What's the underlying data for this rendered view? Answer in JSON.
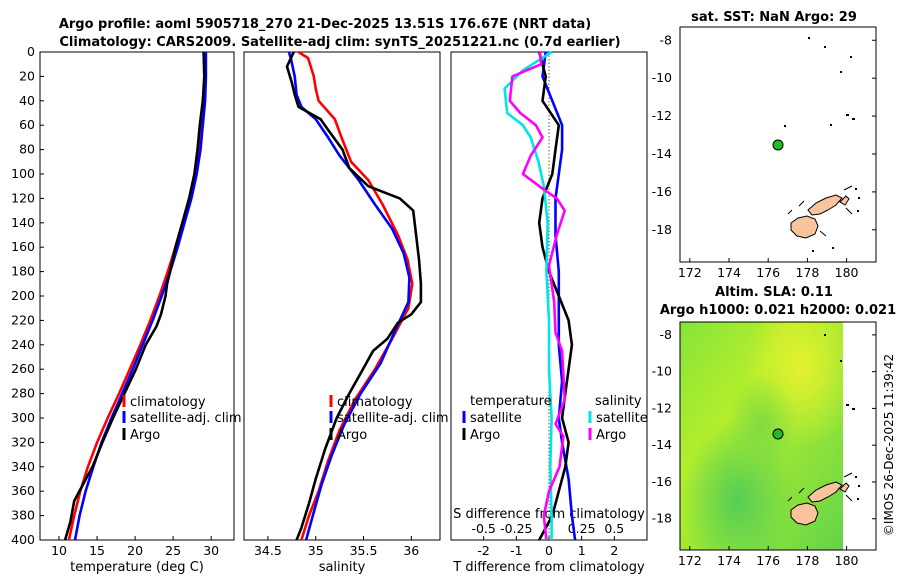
{
  "header": {
    "title_line1": "Argo profile: aoml 5905718_270 21-Dec-2025 13.51S 176.67E (NRT data)",
    "title_line2": "Climatology: CARS2009. Satellite-adj clim: synTS_20251221.nc (0.7d earlier)"
  },
  "watermark": "©IMOS 26-Dec-2025 11:39:42",
  "colors": {
    "climatology": "#ff0000",
    "satellite": "#0000ff",
    "argo": "#000000",
    "salinity_diff_argo": "#ff00ff",
    "salinity_diff_satellite": "#00e5e5",
    "land": "#f7c49d",
    "float_marker": "#22bb22"
  },
  "chart_data": [
    {
      "id": "temperature",
      "type": "line",
      "xlabel": "temperature (deg C)",
      "ylabel": "",
      "xlim": [
        7.5,
        33
      ],
      "ylim": [
        400,
        0
      ],
      "xticks": [
        "10",
        "15",
        "20",
        "25",
        "30"
      ],
      "yticks": [
        "0",
        "20",
        "40",
        "60",
        "80",
        "100",
        "120",
        "140",
        "160",
        "180",
        "200",
        "220",
        "240",
        "260",
        "280",
        "300",
        "320",
        "340",
        "360",
        "380",
        "400"
      ],
      "legend_location": "right",
      "legend": [
        "climatology",
        "satellite-adj. clim",
        "Argo"
      ],
      "series": [
        {
          "name": "climatology",
          "color": "#ff0000",
          "points": [
            [
              29.2,
              0
            ],
            [
              29.2,
              20
            ],
            [
              29.1,
              40
            ],
            [
              28.8,
              60
            ],
            [
              28.5,
              80
            ],
            [
              28.0,
              100
            ],
            [
              27.2,
              120
            ],
            [
              26.3,
              140
            ],
            [
              25.3,
              160
            ],
            [
              24.3,
              180
            ],
            [
              23.2,
              200
            ],
            [
              22.0,
              220
            ],
            [
              20.7,
              240
            ],
            [
              19.3,
              260
            ],
            [
              17.9,
              280
            ],
            [
              16.4,
              300
            ],
            [
              15.0,
              320
            ],
            [
              13.8,
              340
            ],
            [
              12.8,
              360
            ],
            [
              12.0,
              380
            ],
            [
              11.3,
              400
            ]
          ]
        },
        {
          "name": "satellite-adj. clim",
          "color": "#0000ff",
          "points": [
            [
              29.3,
              0
            ],
            [
              29.3,
              20
            ],
            [
              29.2,
              40
            ],
            [
              28.9,
              60
            ],
            [
              28.6,
              80
            ],
            [
              28.1,
              100
            ],
            [
              27.4,
              120
            ],
            [
              26.5,
              140
            ],
            [
              25.6,
              160
            ],
            [
              24.6,
              180
            ],
            [
              23.5,
              200
            ],
            [
              22.3,
              220
            ],
            [
              21.0,
              240
            ],
            [
              19.7,
              260
            ],
            [
              18.3,
              280
            ],
            [
              16.9,
              300
            ],
            [
              15.6,
              320
            ],
            [
              14.5,
              340
            ],
            [
              13.5,
              360
            ],
            [
              12.7,
              380
            ],
            [
              12.1,
              400
            ]
          ]
        },
        {
          "name": "Argo",
          "color": "#000000",
          "points": [
            [
              29.0,
              0
            ],
            [
              29.1,
              20
            ],
            [
              28.9,
              40
            ],
            [
              28.5,
              60
            ],
            [
              28.2,
              80
            ],
            [
              27.8,
              100
            ],
            [
              27.1,
              120
            ],
            [
              26.2,
              140
            ],
            [
              25.3,
              160
            ],
            [
              24.6,
              180
            ],
            [
              24.2,
              190
            ],
            [
              24.0,
              200
            ],
            [
              23.4,
              215
            ],
            [
              22.8,
              225
            ],
            [
              21.4,
              240
            ],
            [
              20.1,
              260
            ],
            [
              18.6,
              280
            ],
            [
              17.1,
              300
            ],
            [
              15.7,
              320
            ],
            [
              14.4,
              340
            ],
            [
              13.1,
              355
            ],
            [
              12.0,
              368
            ],
            [
              11.5,
              385
            ],
            [
              10.8,
              400
            ]
          ]
        }
      ]
    },
    {
      "id": "salinity",
      "type": "line",
      "xlabel": "salinity",
      "ylabel": "",
      "xlim": [
        34.25,
        36.3
      ],
      "ylim": [
        400,
        0
      ],
      "xticks": [
        "34.5",
        "35",
        "35.5",
        "36"
      ],
      "legend_location": "right",
      "legend": [
        "climatology",
        "satellite-adj. clim",
        "Argo"
      ],
      "series": [
        {
          "name": "climatology",
          "color": "#ff0000",
          "points": [
            [
              34.82,
              0
            ],
            [
              34.92,
              5
            ],
            [
              34.98,
              20
            ],
            [
              35.0,
              30
            ],
            [
              35.03,
              40
            ],
            [
              35.2,
              55
            ],
            [
              35.27,
              70
            ],
            [
              35.37,
              90
            ],
            [
              35.55,
              105
            ],
            [
              35.7,
              125
            ],
            [
              35.86,
              150
            ],
            [
              35.96,
              170
            ],
            [
              36.01,
              190
            ],
            [
              35.97,
              210
            ],
            [
              35.8,
              235
            ],
            [
              35.62,
              260
            ],
            [
              35.41,
              285
            ],
            [
              35.25,
              310
            ],
            [
              35.13,
              335
            ],
            [
              35.03,
              360
            ],
            [
              34.93,
              380
            ],
            [
              34.85,
              400
            ]
          ]
        },
        {
          "name": "satellite-adj. clim",
          "color": "#0000ff",
          "points": [
            [
              34.72,
              0
            ],
            [
              34.74,
              5
            ],
            [
              34.78,
              20
            ],
            [
              34.8,
              35
            ],
            [
              34.85,
              45
            ],
            [
              35.0,
              55
            ],
            [
              35.13,
              70
            ],
            [
              35.25,
              85
            ],
            [
              35.45,
              105
            ],
            [
              35.62,
              125
            ],
            [
              35.8,
              145
            ],
            [
              35.92,
              165
            ],
            [
              35.98,
              185
            ],
            [
              35.97,
              205
            ],
            [
              35.85,
              225
            ],
            [
              35.68,
              255
            ],
            [
              35.47,
              280
            ],
            [
              35.3,
              305
            ],
            [
              35.17,
              330
            ],
            [
              35.06,
              355
            ],
            [
              34.97,
              380
            ],
            [
              34.9,
              400
            ]
          ]
        },
        {
          "name": "Argo",
          "color": "#000000",
          "points": [
            [
              34.77,
              0
            ],
            [
              34.7,
              12
            ],
            [
              34.75,
              25
            ],
            [
              34.78,
              35
            ],
            [
              34.82,
              45
            ],
            [
              35.05,
              55
            ],
            [
              35.14,
              65
            ],
            [
              35.28,
              80
            ],
            [
              35.35,
              95
            ],
            [
              35.55,
              110
            ],
            [
              35.88,
              120
            ],
            [
              36.02,
              130
            ],
            [
              36.05,
              150
            ],
            [
              36.08,
              170
            ],
            [
              36.1,
              190
            ],
            [
              36.1,
              205
            ],
            [
              36.0,
              215
            ],
            [
              35.86,
              222
            ],
            [
              35.75,
              235
            ],
            [
              35.6,
              245
            ],
            [
              35.48,
              262
            ],
            [
              35.35,
              280
            ],
            [
              35.22,
              300
            ],
            [
              35.1,
              325
            ],
            [
              35.0,
              350
            ],
            [
              34.93,
              370
            ],
            [
              34.85,
              390
            ],
            [
              34.8,
              400
            ]
          ]
        }
      ]
    },
    {
      "id": "difference",
      "type": "line",
      "xlabel": "T difference from climatology",
      "secondary_xlabel": "S difference from climatology",
      "xlim": [
        -3.0,
        3.0
      ],
      "ylim": [
        400,
        0
      ],
      "xticks": [
        "-2",
        "-1",
        "0",
        "1",
        "2"
      ],
      "secondary_xlim": [
        -0.75,
        0.75
      ],
      "secondary_xticks": [
        "-0.5",
        "-0.25",
        "0",
        "0.25",
        "0.5"
      ],
      "legend_location": "right",
      "legend_temperature_title": "temperature",
      "legend_salinity_title": "salinity",
      "legend_temperature": [
        "satellite",
        "Argo"
      ],
      "legend_salinity": [
        "satellite",
        "Argo"
      ],
      "series": [
        {
          "name": "temperature satellite",
          "color": "#0000ff",
          "axis": "T",
          "points": [
            [
              -0.1,
              0
            ],
            [
              -0.2,
              20
            ],
            [
              0.1,
              40
            ],
            [
              0.4,
              60
            ],
            [
              0.4,
              80
            ],
            [
              0.3,
              100
            ],
            [
              0.2,
              120
            ],
            [
              0.2,
              150
            ],
            [
              0.3,
              180
            ],
            [
              0.3,
              210
            ],
            [
              0.3,
              240
            ],
            [
              0.4,
              270
            ],
            [
              0.3,
              300
            ],
            [
              0.4,
              320
            ],
            [
              0.6,
              350
            ],
            [
              0.7,
              380
            ],
            [
              0.8,
              400
            ]
          ]
        },
        {
          "name": "temperature Argo",
          "color": "#000000",
          "axis": "T",
          "points": [
            [
              -0.3,
              0
            ],
            [
              -0.1,
              20
            ],
            [
              -0.2,
              40
            ],
            [
              0.3,
              60
            ],
            [
              0.2,
              80
            ],
            [
              0.1,
              100
            ],
            [
              -0.2,
              120
            ],
            [
              -0.3,
              140
            ],
            [
              -0.2,
              160
            ],
            [
              0.0,
              180
            ],
            [
              0.3,
              200
            ],
            [
              0.6,
              220
            ],
            [
              0.7,
              240
            ],
            [
              0.6,
              260
            ],
            [
              0.5,
              280
            ],
            [
              0.4,
              300
            ],
            [
              0.6,
              320
            ],
            [
              0.5,
              340
            ],
            [
              0.3,
              360
            ],
            [
              0.1,
              380
            ],
            [
              -0.3,
              400
            ]
          ]
        },
        {
          "name": "salinity satellite",
          "color": "#00e5e5",
          "axis": "S",
          "points": [
            [
              0.02,
              0
            ],
            [
              -0.2,
              15
            ],
            [
              -0.34,
              30
            ],
            [
              -0.32,
              50
            ],
            [
              -0.2,
              60
            ],
            [
              -0.14,
              70
            ],
            [
              -0.08,
              90
            ],
            [
              -0.04,
              110
            ],
            [
              -0.01,
              140
            ],
            [
              -0.02,
              180
            ],
            [
              0.0,
              220
            ],
            [
              0.0,
              260
            ],
            [
              0.02,
              300
            ],
            [
              0.01,
              340
            ],
            [
              0.02,
              380
            ],
            [
              0.02,
              400
            ]
          ]
        },
        {
          "name": "salinity Argo",
          "color": "#ff00ff",
          "axis": "S",
          "points": [
            [
              -0.07,
              0
            ],
            [
              -0.06,
              10
            ],
            [
              -0.28,
              20
            ],
            [
              -0.3,
              40
            ],
            [
              -0.22,
              50
            ],
            [
              -0.1,
              60
            ],
            [
              -0.05,
              70
            ],
            [
              -0.14,
              85
            ],
            [
              -0.2,
              100
            ],
            [
              -0.05,
              112
            ],
            [
              0.06,
              120
            ],
            [
              0.12,
              130
            ],
            [
              0.06,
              150
            ],
            [
              0.0,
              175
            ],
            [
              0.04,
              205
            ],
            [
              0.05,
              230
            ],
            [
              0.1,
              245
            ],
            [
              0.11,
              265
            ],
            [
              0.12,
              285
            ],
            [
              0.05,
              305
            ],
            [
              0.11,
              315
            ],
            [
              0.08,
              340
            ],
            [
              0.0,
              360
            ],
            [
              -0.04,
              380
            ],
            [
              -0.02,
              400
            ]
          ]
        }
      ]
    },
    {
      "id": "map_sst",
      "type": "scatter",
      "title": "sat. SST: NaN Argo: 29",
      "xlim": [
        171.5,
        181.5
      ],
      "ylim": [
        -19.7,
        -7.3
      ],
      "xticks": [
        "172",
        "174",
        "176",
        "178",
        "180"
      ],
      "yticks": [
        "-8",
        "-10",
        "-12",
        "-14",
        "-16",
        "-18"
      ],
      "float_position": [
        176.67,
        -13.51
      ]
    },
    {
      "id": "map_sla",
      "type": "heatmap",
      "title_line1": "Altim. SLA: 0.11",
      "title_line2": "Argo h1000: 0.021 h2000: 0.021",
      "xlim": [
        171.5,
        181.5
      ],
      "ylim": [
        -19.7,
        -7.3
      ],
      "xticks": [
        "172",
        "174",
        "176",
        "178",
        "180"
      ],
      "yticks": [
        "-8",
        "-10",
        "-12",
        "-14",
        "-16",
        "-18"
      ],
      "float_position": [
        176.67,
        -13.51
      ]
    }
  ]
}
